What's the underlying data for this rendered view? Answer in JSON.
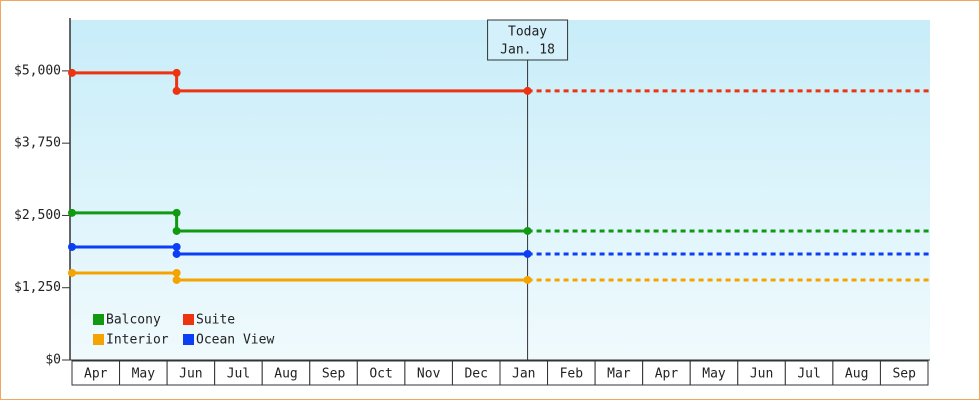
{
  "chart_data": {
    "type": "step-line",
    "categories": [
      "Apr",
      "May",
      "Jun",
      "Jul",
      "Aug",
      "Sep",
      "Oct",
      "Nov",
      "Dec",
      "Jan",
      "Feb",
      "Mar",
      "Apr",
      "May",
      "Jun",
      "Jul",
      "Aug",
      "Sep"
    ],
    "xlim": [
      0,
      18
    ],
    "ylim": [
      0,
      5880
    ],
    "yticks": [
      {
        "value": 0,
        "label": "$0"
      },
      {
        "value": 1250,
        "label": "$1,250"
      },
      {
        "value": 2500,
        "label": "$2,500"
      },
      {
        "value": 3750,
        "label": "$3,750"
      },
      {
        "value": 5000,
        "label": "$5,000"
      }
    ],
    "today": {
      "x": 9.58,
      "label": "Today",
      "date": "Jan. 18"
    },
    "projection": "dashed",
    "series": [
      {
        "name": "Balcony",
        "color": "#119911",
        "x": [
          0,
          2.2,
          2.2,
          9.58
        ],
        "values": [
          2545,
          2545,
          2232,
          2232
        ]
      },
      {
        "name": "Suite",
        "color": "#ee3311",
        "x": [
          0,
          2.2,
          2.2,
          9.58
        ],
        "values": [
          4965,
          4965,
          4654,
          4654
        ]
      },
      {
        "name": "Interior",
        "color": "#f5a300",
        "x": [
          0,
          2.2,
          2.2,
          9.58
        ],
        "values": [
          1505,
          1505,
          1384,
          1384
        ]
      },
      {
        "name": "Ocean View",
        "color": "#0b3ef5",
        "x": [
          0,
          2.2,
          2.2,
          9.58
        ],
        "values": [
          1955,
          1955,
          1834,
          1834
        ]
      }
    ]
  }
}
